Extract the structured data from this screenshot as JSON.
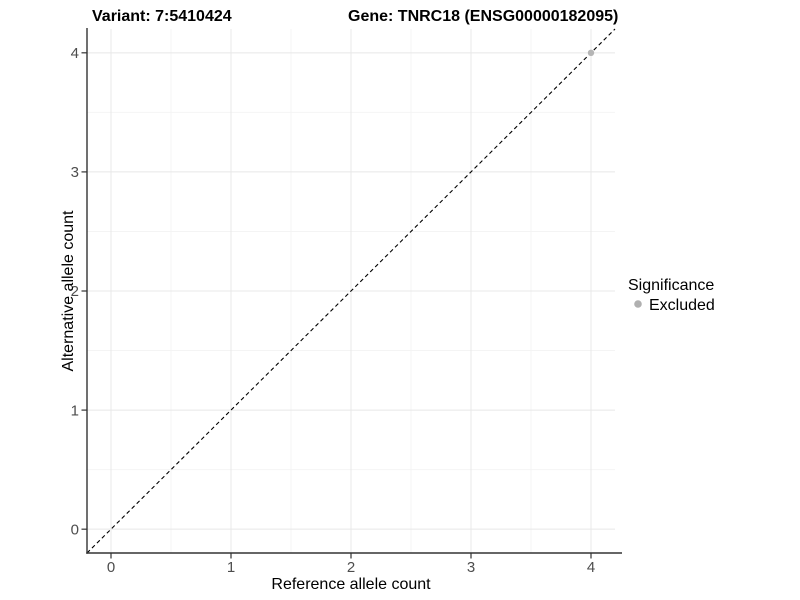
{
  "title": {
    "variant": "Variant: 7:5410424",
    "gene": "Gene: TNRC18 (ENSG00000182095)"
  },
  "chart_data": {
    "type": "scatter",
    "title": "Variant: 7:5410424 | Gene: TNRC18 (ENSG00000182095)",
    "xlabel": "Reference allele count",
    "ylabel": "Alternative allele count",
    "xlim": [
      -0.2,
      4.2
    ],
    "ylim": [
      -0.2,
      4.2
    ],
    "xticks": [
      0,
      1,
      2,
      3,
      4
    ],
    "yticks": [
      0,
      1,
      2,
      3,
      4
    ],
    "minor_xticks": [
      0.5,
      1.5,
      2.5,
      3.5
    ],
    "minor_yticks": [
      0.5,
      1.5,
      2.5,
      3.5
    ],
    "grid": "on",
    "legend_position": "right",
    "reference_line": {
      "type": "identity",
      "equation": "y = x",
      "style": "dashed",
      "color": "#000000",
      "x1": -0.2,
      "y1": -0.2,
      "x2": 4.2,
      "y2": 4.2
    },
    "series": [
      {
        "name": "Excluded",
        "color": "#b5b5b5",
        "points": [
          {
            "x": 4,
            "y": 4
          }
        ]
      }
    ]
  },
  "legend": {
    "title": "Significance",
    "entries": [
      {
        "label": "Excluded",
        "color": "#b0b0b0"
      }
    ]
  },
  "colors": {
    "background": "#ffffff",
    "grid_major": "#e8e8e8",
    "grid_minor": "#f4f4f4",
    "axis_line": "#333333",
    "tick_mark": "#333333",
    "tick_label": "#4d4d4d",
    "point": "#b5b5b5",
    "dashed_line": "#000000"
  }
}
